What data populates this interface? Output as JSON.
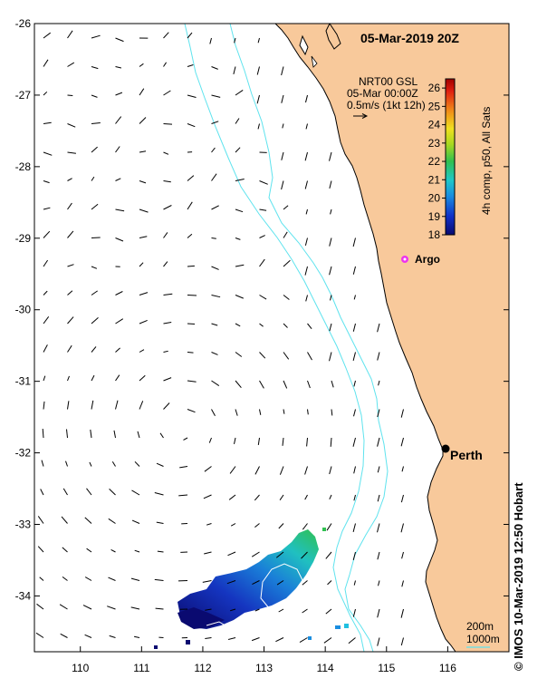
{
  "title": "05-Mar-2019 20Z",
  "currents_legend": {
    "line1": "NRT00 GSL",
    "line2": "05-Mar 00:00Z",
    "line3": "0.5m/s (1kt 12h)"
  },
  "colorbar": {
    "label": "4h comp, p50, All Sats",
    "ticks": [
      "26",
      "25",
      "24",
      "23",
      "22",
      "21",
      "20",
      "19",
      "18"
    ],
    "min": 18,
    "max": 26.5
  },
  "places": {
    "argo": "Argo",
    "perth": "Perth"
  },
  "bathy_legend": {
    "line1": "200m",
    "line2": "1000m"
  },
  "credit": "© IMOS 10-Mar-2019 12:50 Hobart",
  "axes": {
    "lon_ticks": [
      "110",
      "111",
      "112",
      "113",
      "114",
      "115",
      "116"
    ],
    "lat_ticks": [
      "-26",
      "-27",
      "-28",
      "-29",
      "-30",
      "-31",
      "-32",
      "-33",
      "-34"
    ],
    "lon_range": [
      109.25,
      117.0
    ],
    "lat_range": [
      -34.78,
      -26.0
    ]
  },
  "colors": {
    "land": "#f8c99b",
    "coast": "#000000",
    "isobath": "#5fe3ee",
    "argo": "#ee33ee"
  }
}
